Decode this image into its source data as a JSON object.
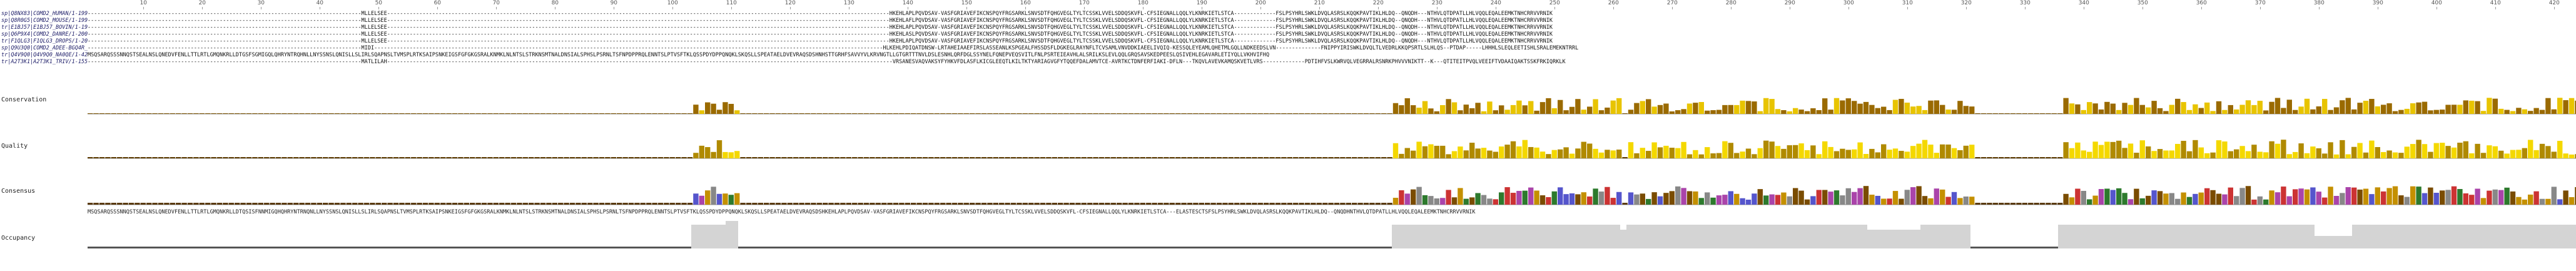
{
  "ruler": {
    "ticks": [
      "10",
      "20",
      "30",
      "40",
      "50",
      "60",
      "70",
      "80",
      "90",
      "100",
      "110",
      "120",
      "130",
      "140",
      "150",
      "160",
      "170",
      "180",
      "190",
      "200",
      "210",
      "220",
      "230",
      "240",
      "250",
      "260",
      "270",
      "280",
      "290",
      "300",
      "310",
      "320",
      "330",
      "340",
      "350",
      "360",
      "370",
      "380",
      "390",
      "400",
      "410",
      "420"
    ]
  },
  "sequences": [
    {
      "name": "sp|Q8NX83|COMD2_HUMAN/1-199",
      "residues": "-------------------------------------------------------------------------------------MLLELSEE------------------------------------------------------------------------------------------------------------------------------------------------------------HKEHLAPLPQVDSAV-VASFGRIAVEFIKCNSPQYFRGSARKLSNVSDTFQHGVEGLTYLTCSSKLVVELSDDQSKVFL-CFSIEGNALLQQLYLKNRKIETLSTCA-------------FSLPSYHRLSWKLDVQLASRSLKQQKPAVTIKLHLDQ--QNQDH---NTHVLQTDPATLLHLVQQLEQALEEMKTNHCRRVVRNIK"
    },
    {
      "name": "sp|Q8R0G5|COMD2_MOUSE/1-199",
      "residues": "-------------------------------------------------------------------------------------MLLELSEE------------------------------------------------------------------------------------------------------------------------------------------------------------HKEHLAFLPQVDSAV-VASFGRIAVEFIKCNSPQYFRGSARKLSNVSDTFQHGVEGLTYLTCSSKLVVELSDDQSKVFL-CFSIEGNALLQQLYLKNRKIETLSTCA-------------FSLPSYHRLSWKLDVQLASRSLKQQKPAVTIKLHLDQ--QNQDH---NTHVLQTDPATLLHLVQQLEQALEEMKTNHCRRVVRNIK"
    },
    {
      "name": "tr|E1BJ57|E1BJ57_BOVIN/1-199",
      "residues": "-------------------------------------------------------------------------------------MLLELSEE------------------------------------------------------------------------------------------------------------------------------------------------------------HKEHLAPLPQVDSAV-VASFGRIAVEFIKCNSPQYFRGSARKLSNVSDTFQHGVEGLTYLTCSSKLVVELSDDQSKVFL-CFSIEGNALLQQLYLKNRKIETLSTCA-------------FSLPSYHRLSWKLDVQLASRSLKQQKPAVTIKLHLDQ--QNQDH---NTHVLQTDPATLLHLVQQLEQALEEMKTNHCRRVVRNIK"
    },
    {
      "name": "sp|Q6P9X4|COMD2_DANRE/1-200",
      "residues": "-------------------------------------------------------------------------------------MLLELSEE------------------------------------------------------------------------------------------------------------------------------------------------------------HKEHLASLPQVDSAV-VASFGRIAVEFIKCNSPQYFRGSARKLSNVSDTFQHGVEGLTYLTCSSKLVVELSDDQSKVFL-CFSIEGNALLQQLYLKNRKIETLSTCA-------------FSLPSYHRLSWKLDVQLASRSLKQQKPAVTIKLHLDQ--QNQDH---NTHVLQTDPATLLHLVQQLEQALEEMKTNHCRRVVRNIK"
    },
    {
      "name": "tr|F1QLG3|F1QLG3_DROPS/1-205",
      "residues": "-------------------------------------------------------------------------------------MLLELSEE------------------------------------------------------------------------------------------------------------------------------------------------------------HKEHLAPLPQVDSAV-VASFGRIAVEFIKCNSPQYFRGSARKLSNVSDTFQHGVEGLTYLTCSSKLVVELSDDQSKVFL-CFSIEGNALLQQLYLKNRKIETLSTCA-------------FSLPSYHRLSWKLDVQLASRSLKQQKPAVTIKLHLDQ--QNQDH---NTHVLQTDPATLLHLVQQLEQALEEMKTNHCRRVVRNIK"
    },
    {
      "name": "sp|Q9U3Q0|COMD2_ADEE-BGQ4R_SCLLI/1-199",
      "residues": "-------------------------------------------------------------------------------------MIDI--------------------------------------------------------------------------------------------------------------------------------------------------------------HLKEHLPDIQATDNSW-LRTAHEIAAEFIRSLASSEANLKSPGEALFHSSDSFLDGKEGLRAYNFLTCVSAMLVNVDDKIAEELIVQIQ-KESSQLEYEAMLQHETMLGQLLNDKEEDSLVN--------------FNIPPYIRISWKLDVQLTLVEDRLKKQPSRTLSLHLQS--PTDAP-----LHHHLSLEQLEETISHLSRALEMEKNTRRL"
    },
    {
      "name": "tr|Q4V9Q0|Q4V9Q0_NA0QE/1-426",
      "residues": "MSQSARQSSSNNQSTSEALNSLQNEDVFENLLTTLRTLGMQNKRLLDTGSFSGMIGQLQHRYNTRQHNLLNYSSNSLQNISLLSLIRLSQAPNSLTVMSPLRTKSAIPSNKEIGSFGFGKGSRALKNMKLNLNTSLSTRKNSMTNALDNSIALSPHSLPSRNLTSFNPDPPRQLENNTSLPTVSFTKLQSSPDYDPPQNQKLSKQSLLSPEATAELDVEVRAQSDSHNHSTTGRHFSAVVYVLKRVNGTLLGTGRTTTNVLDSLESNHLQRFDGLSSYNELFQNEPVEQSVITLFNLPSRTEIEAVHLALSRILKSLEVLQQLGRQSAVSKEDPEESLQSIVEHLEGAVARLETIYQLLVKHVIFHQ"
    },
    {
      "name": "tr|A2T3K1|A2T3K1_TRIV/1-155",
      "residues": "-------------------------------------------------------------------------------------MATLILAH-------------------------------------------------------------------------------------------------------------------------------------------------------------VRSANESVAQVAKSYFYHKVFDLASFLKICGLEEQTLKILTKTYARIAGVGFYTQQEFDALAMVTCE-AVRTKCTDNFERFIAKI-DFLN---TKQVLAVEVKAMQSKVETLVRS-------------PDTIHFVSLKWRVQLVEGRRALRSNRKPHVVVNIKTT--K---QTITEITPVQLVEEIFTVDAAIQAKTSSKFRKIQRKLK"
    }
  ],
  "annotation_rows": {
    "conservation": {
      "label": "Conservation"
    },
    "quality": {
      "label": "Quality"
    },
    "consensus": {
      "label": "Consensus",
      "sequence": "MSQSARQSSSNNQSTSEALNSLQNEDVFENLLTTLRTLGMQNKRLLDTQSISFNNMIGQHQHRYNTRNQNLLNYSSNSLQNISLLSLIRLSQAPNSLTVMSPLRTKSAIPSNKEIGSFGFGKGSRALKNMKLNLNTSLSTRKNSMTNALDNSIALSPHSLPSRNLTSFNPDPPRQLENNTSLPTVSFTKLQSSPDYDPPQNQKLSKQSLLSPEATAELDVEVRAQSDSHKEHLAPLPQVDSAV-VASFGRIAVEFIKCNSPQYFRGSARKLSNVSDTFQHGVEGLTYLTCSSKLVVELSDDQSKVFL-CFSIEGNALLQQLYLKNRKIETLSTCA---ELASTESCTSFSLPSYHRLSWKLDVQLASRSLKQQKPAVTIKLHLDQ--QNQDHNTHVLQTDPATLLHLVQQLEQALEEMKTNHCRRVVRNIK"
    },
    "occupancy": {
      "label": "Occupancy"
    }
  },
  "colors": {
    "conservation": "#8a5a00",
    "quality_low": "#6b4a00",
    "quality_high": "#ffee00",
    "occupancy": "#d0d0d0",
    "sequence_name": "#1a1a66"
  }
}
